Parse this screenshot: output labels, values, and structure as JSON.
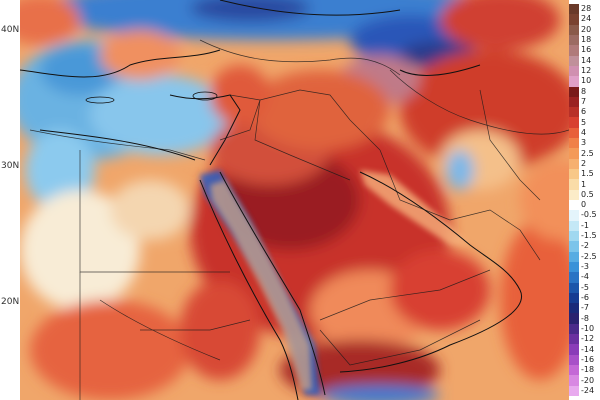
{
  "map": {
    "lat_labels": [
      {
        "text": "40N"
      },
      {
        "text": "30N"
      },
      {
        "text": "20N"
      }
    ],
    "colors": {
      "sea_background": "#6fb6e4",
      "land_base": "#f0a66a"
    }
  },
  "colorbar": {
    "ticks": [
      "28",
      "24",
      "20",
      "18",
      "16",
      "14",
      "12",
      "10",
      "8",
      "7",
      "6",
      "5",
      "4",
      "3",
      "2.5",
      "2",
      "1.5",
      "1",
      "0.5",
      "0",
      "-0.5",
      "-1",
      "-1.5",
      "-2",
      "-2.5",
      "-3",
      "-4",
      "-5",
      "-6",
      "-7",
      "-8",
      "-10",
      "-12",
      "-14",
      "-16",
      "-18",
      "-20",
      "-24"
    ],
    "colors": [
      "#6a3a2a",
      "#7a4230",
      "#8a5a4a",
      "#9c6b63",
      "#b07a7a",
      "#c0909a",
      "#d090b0",
      "#e0a0c8",
      "#7a1a1a",
      "#9a2222",
      "#b83028",
      "#d84030",
      "#e8603a",
      "#f08048",
      "#f49a58",
      "#f6b070",
      "#f8c888",
      "#fadca8",
      "#fcecc8",
      "#ffffff",
      "#e4f4fb",
      "#c4e8f6",
      "#a0d8f0",
      "#7cc4ea",
      "#58ace2",
      "#3a92d8",
      "#2a74c4",
      "#1c56aa",
      "#163c92",
      "#1a2a7a",
      "#2a2270",
      "#4a2a8a",
      "#6a30a0",
      "#8a3cb8",
      "#a850c8",
      "#c468d6",
      "#d888e2",
      "#e8aaee"
    ]
  }
}
